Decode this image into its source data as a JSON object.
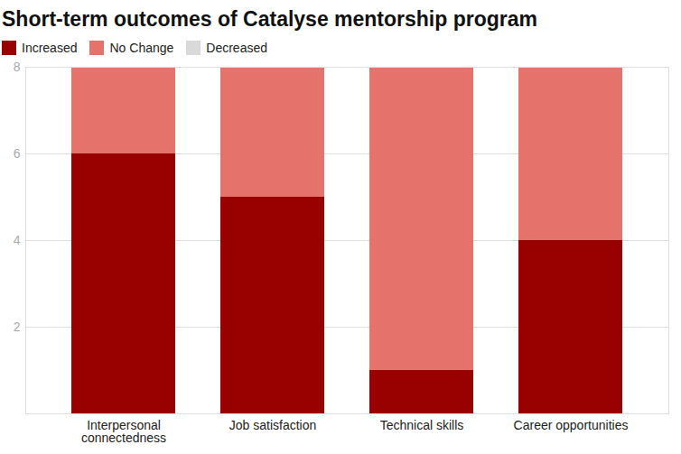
{
  "chart_data": {
    "type": "bar",
    "title": "Short-term outcomes of Catalyse mentorship program",
    "categories": [
      "Interpersonal connectedness",
      "Job satisfaction",
      "Technical skills",
      "Career opportunities"
    ],
    "series": [
      {
        "name": "Increased",
        "color": "#990000",
        "values": [
          6,
          5,
          1,
          4
        ]
      },
      {
        "name": "No Change",
        "color": "#e5736b",
        "values": [
          2,
          3,
          7,
          4
        ]
      },
      {
        "name": "Decreased",
        "color": "#d9d9d9",
        "values": [
          0,
          0,
          0,
          0
        ]
      }
    ],
    "stacked": true,
    "ylim": [
      0,
      8
    ],
    "yticks": [
      2,
      4,
      6,
      8
    ],
    "grid": true,
    "legend": "top-left"
  }
}
